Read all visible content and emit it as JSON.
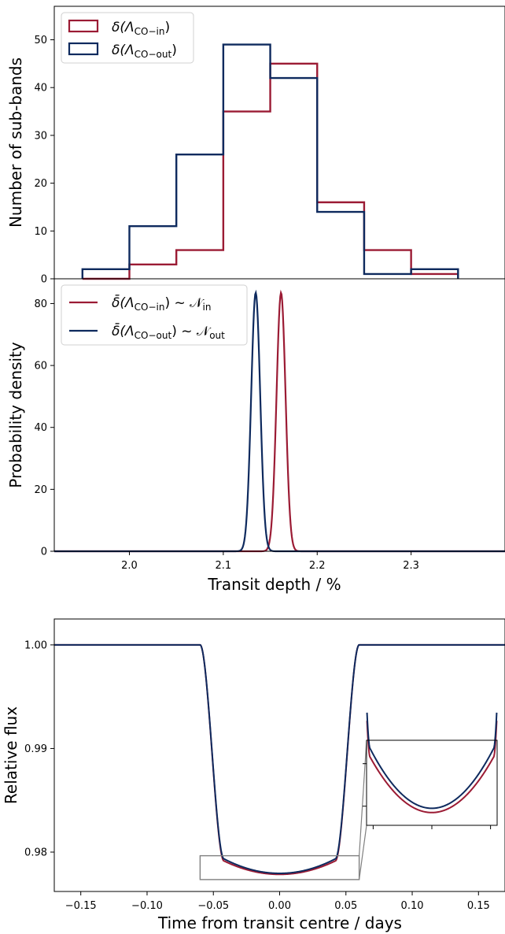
{
  "colors": {
    "in": "#9b1b34",
    "out": "#0e2a5e",
    "zoom": "#808080"
  },
  "chart_data": [
    {
      "type": "histogram",
      "ylabel": "Number of sub-bands",
      "ylim": [
        0,
        57
      ],
      "yticks": [
        0,
        10,
        20,
        30,
        40,
        50
      ],
      "xlim": [
        1.92,
        2.4
      ],
      "bin_edges": [
        1.95,
        2.0,
        2.05,
        2.1,
        2.15,
        2.2,
        2.25,
        2.3,
        2.35
      ],
      "legend_position": "top-left",
      "series": [
        {
          "key": "in",
          "name": "δ(Λ",
          "name_sub": "CO−in",
          "name_tail": ")",
          "counts": [
            0,
            3,
            6,
            35,
            45,
            16,
            6,
            1
          ]
        },
        {
          "key": "out",
          "name": "δ(Λ",
          "name_sub": "CO−out",
          "name_tail": ")",
          "counts": [
            2,
            11,
            26,
            49,
            42,
            14,
            1,
            2
          ]
        }
      ]
    },
    {
      "type": "line",
      "ylabel": "Probability density",
      "xlabel": "Transit depth / %",
      "xlim": [
        1.92,
        2.4
      ],
      "ylim": [
        0,
        88
      ],
      "xticks": [
        2.0,
        2.1,
        2.2,
        2.3
      ],
      "xtick_labels": [
        "2.0",
        "2.1",
        "2.2",
        "2.3"
      ],
      "yticks": [
        0,
        20,
        40,
        60,
        80
      ],
      "legend_position": "top-left",
      "series": [
        {
          "key": "in",
          "name": "δ̄(Λ",
          "name_sub": "CO−in",
          "name_tail": ") ~ 𝒩",
          "name_sub2": "in",
          "mean": 2.1615,
          "sigma": 0.0048,
          "peak": 83.5
        },
        {
          "key": "out",
          "name": "δ̄(Λ",
          "name_sub": "CO−out",
          "name_tail": ") ~ 𝒩",
          "name_sub2": "out",
          "mean": 2.1345,
          "sigma": 0.0048,
          "peak": 83.5
        }
      ]
    },
    {
      "type": "line",
      "ylabel": "Relative flux",
      "xlabel": "Time from transit centre / days",
      "xlim": [
        -0.17,
        0.17
      ],
      "ylim": [
        0.9762,
        1.0025
      ],
      "xticks": [
        -0.15,
        -0.1,
        -0.05,
        0.0,
        0.05,
        0.1,
        0.15
      ],
      "xtick_labels": [
        "−0.15",
        "−0.10",
        "−0.05",
        "0.00",
        "0.05",
        "0.10",
        "0.15"
      ],
      "yticks": [
        0.98,
        0.99,
        1.0
      ],
      "ytick_labels": [
        "0.98",
        "0.99",
        "1.00"
      ],
      "transit": {
        "t1": 0.06,
        "t2": 0.042,
        "floor_in": 0.97915,
        "floor_out": 0.97935,
        "bottom_in": 0.97785,
        "bottom_out": 0.97795
      },
      "series": [
        {
          "key": "in"
        },
        {
          "key": "out"
        }
      ],
      "zoom_box": {
        "xlim": [
          -0.06,
          0.06
        ],
        "ylim": [
          0.97735,
          0.97965
        ]
      }
    }
  ]
}
